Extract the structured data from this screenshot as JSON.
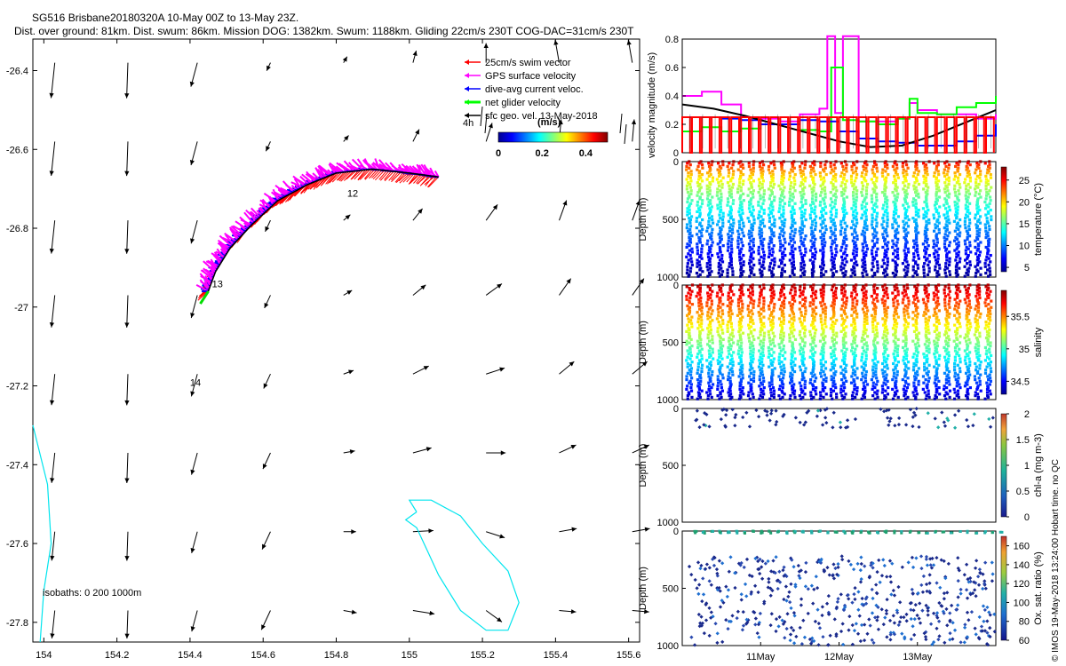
{
  "title_line1": "SG516 Brisbane20180320A 10-May 00Z to 13-May 23Z.",
  "title_line2": "Dist. over ground: 81km. Dist. swum: 86km. Mission DOG: 1382km. Swum: 1188km. Gliding 22cm/s 230T COG-DAC=31cm/s 230T",
  "credit": "© IMOS 19-May-2018 13:24:00 Hobart time. no QC",
  "chart_data": [
    {
      "type": "scatter",
      "name": "map",
      "xlim": [
        153.97,
        155.63
      ],
      "ylim": [
        -27.85,
        -26.32
      ],
      "x_ticks": [
        154,
        154.2,
        154.4,
        154.6,
        154.8,
        155,
        155.2,
        155.4,
        155.6
      ],
      "y_ticks": [
        -26.4,
        -26.6,
        -26.8,
        -27,
        -27.2,
        -27.4,
        -27.6,
        -27.8
      ],
      "legend": [
        {
          "label": "25cm/s swim vector",
          "color": "#ff0000"
        },
        {
          "label": "GPS surface velocity",
          "color": "#ff00ff"
        },
        {
          "label": "dive-avg current veloc.",
          "color": "#0000ff"
        },
        {
          "label": "net glider velocity",
          "color": "#00ff00"
        },
        {
          "label": "sfc geo. vel. 13-May-2018",
          "color": "#000000"
        }
      ],
      "legend_scale_label": "4h",
      "colorbar": {
        "label": "(m/s)",
        "ticks": [
          "0",
          "0.2",
          "0.4"
        ],
        "range": [
          0,
          0.5
        ]
      },
      "isobaths_label": "isobaths: 0   200  1000m",
      "day_labels": [
        {
          "text": "12",
          "lon": 154.83,
          "lat": -26.72
        },
        {
          "text": "13",
          "lon": 154.46,
          "lat": -26.95
        },
        {
          "text": "14",
          "lon": 154.4,
          "lat": -27.2
        }
      ],
      "track": [
        [
          155.08,
          -26.67
        ],
        [
          155.0,
          -26.66
        ],
        [
          154.9,
          -26.65
        ],
        [
          154.8,
          -26.66
        ],
        [
          154.72,
          -26.69
        ],
        [
          154.64,
          -26.73
        ],
        [
          154.57,
          -26.79
        ],
        [
          154.51,
          -26.85
        ],
        [
          154.47,
          -26.91
        ],
        [
          154.45,
          -26.96
        ]
      ],
      "isobath_1000m": [
        [
          155.02,
          -27.52
        ],
        [
          155.0,
          -27.49
        ],
        [
          155.06,
          -27.49
        ],
        [
          155.14,
          -27.53
        ],
        [
          155.2,
          -27.6
        ],
        [
          155.27,
          -27.67
        ],
        [
          155.3,
          -27.75
        ],
        [
          155.27,
          -27.82
        ],
        [
          155.21,
          -27.82
        ],
        [
          155.14,
          -27.77
        ],
        [
          155.08,
          -27.68
        ],
        [
          155.05,
          -27.62
        ],
        [
          155.02,
          -27.56
        ],
        [
          154.99,
          -27.54
        ],
        [
          155.02,
          -27.52
        ]
      ],
      "isobath_coast": [
        [
          153.97,
          -27.3
        ],
        [
          154.01,
          -27.45
        ],
        [
          154.02,
          -27.6
        ],
        [
          154.0,
          -27.72
        ],
        [
          153.99,
          -27.85
        ]
      ]
    },
    {
      "type": "line",
      "name": "velocity magnitude",
      "ylabel": "velocity magnitude (m/s)",
      "ylim": [
        0,
        0.8
      ],
      "y_ticks": [
        "0",
        "0.2",
        "0.4",
        "0.6",
        "0.8"
      ],
      "xlim_days": [
        10,
        14
      ],
      "series": [
        {
          "name": "GPS surface velocity",
          "color": "#ff00ff",
          "x": [
            10.0,
            10.25,
            10.5,
            10.75,
            11.0,
            11.25,
            11.5,
            11.75,
            11.85,
            11.95,
            12.05,
            12.25,
            12.5,
            12.75,
            12.9,
            13.0,
            13.25,
            13.5,
            13.75,
            14.0
          ],
          "y": [
            0.4,
            0.43,
            0.34,
            0.25,
            0.24,
            0.22,
            0.27,
            0.31,
            0.82,
            0.28,
            0.82,
            0.22,
            0.22,
            0.24,
            0.35,
            0.3,
            0.27,
            0.27,
            0.24,
            0.27
          ]
        },
        {
          "name": "net glider velocity",
          "color": "#00ff00",
          "x": [
            10.0,
            10.25,
            10.5,
            10.75,
            11.0,
            11.25,
            11.5,
            11.75,
            11.9,
            12.05,
            12.25,
            12.5,
            12.75,
            12.9,
            13.0,
            13.25,
            13.5,
            13.75,
            14.0
          ],
          "y": [
            0.15,
            0.18,
            0.15,
            0.17,
            0.2,
            0.2,
            0.16,
            0.15,
            0.6,
            0.23,
            0.22,
            0.2,
            0.24,
            0.38,
            0.28,
            0.27,
            0.32,
            0.35,
            0.4
          ]
        },
        {
          "name": "dive-avg current veloc.",
          "color": "#0000ff",
          "x": [
            10.0,
            10.25,
            10.5,
            10.75,
            11.0,
            11.25,
            11.5,
            11.75,
            12.0,
            12.25,
            12.5,
            12.75,
            13.0,
            13.25,
            13.5,
            13.75,
            14.0
          ],
          "y": [
            0.25,
            0.25,
            0.24,
            0.23,
            0.2,
            0.2,
            0.23,
            0.22,
            0.15,
            0.1,
            0.08,
            0.07,
            0.05,
            0.05,
            0.08,
            0.12,
            0.2
          ]
        },
        {
          "name": "sfc geo. vel.",
          "color": "#000000",
          "x": [
            10.0,
            10.4,
            10.8,
            11.2,
            11.6,
            12.0,
            12.4,
            12.8,
            13.2,
            13.6,
            14.0
          ],
          "y": [
            0.34,
            0.31,
            0.26,
            0.2,
            0.14,
            0.08,
            0.04,
            0.05,
            0.12,
            0.21,
            0.3
          ]
        },
        {
          "name": "25cm/s swim vector",
          "color": "#ff0000",
          "x": [
            10.0,
            14.0
          ],
          "y": [
            0.25,
            0.25
          ]
        }
      ]
    },
    {
      "type": "scatter",
      "name": "temperature",
      "ylabel": "Depth (m)",
      "ylim": [
        1000,
        0
      ],
      "y_ticks": [
        "0",
        "500",
        "1000"
      ],
      "colorbar": {
        "label": "temperature (°C)",
        "range": [
          4,
          28
        ],
        "ticks": [
          "5",
          "10",
          "15",
          "20",
          "25"
        ]
      }
    },
    {
      "type": "scatter",
      "name": "salinity",
      "ylabel": "Depth (m)",
      "ylim": [
        1000,
        0
      ],
      "y_ticks": [
        "0",
        "500",
        "1000"
      ],
      "colorbar": {
        "label": "salinity",
        "range": [
          34.3,
          35.9
        ],
        "ticks": [
          "34.5",
          "35",
          "35.5"
        ]
      }
    },
    {
      "type": "scatter",
      "name": "chl-a",
      "ylabel": "Depth (m)",
      "ylim": [
        1000,
        0
      ],
      "y_ticks": [
        "0",
        "500",
        "1000"
      ],
      "colorbar": {
        "label": "chl-a (mg m-3)",
        "range": [
          0,
          2
        ],
        "ticks": [
          "0",
          "0.5",
          "1",
          "1.5",
          "2"
        ]
      }
    },
    {
      "type": "scatter",
      "name": "oxygen",
      "ylabel": "Depth (m)",
      "ylim": [
        1000,
        0
      ],
      "y_ticks": [
        "0",
        "500",
        "1000"
      ],
      "x_ticks": [
        "11May",
        "12May",
        "13May"
      ],
      "colorbar": {
        "label": "Ox. sat. ratio (%)",
        "range": [
          60,
          170
        ],
        "ticks": [
          "60",
          "80",
          "100",
          "120",
          "140",
          "160"
        ]
      }
    }
  ]
}
